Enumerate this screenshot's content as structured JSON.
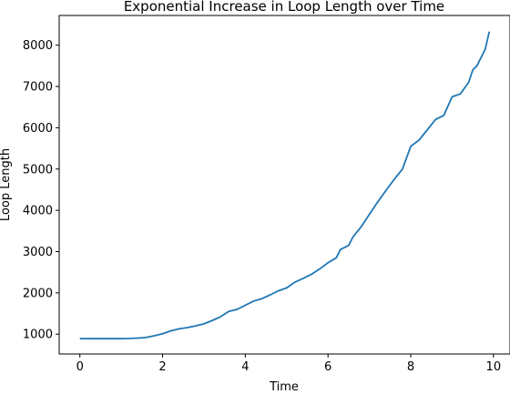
{
  "chart_data": {
    "type": "line",
    "title": "Exponential Increase in Loop Length over Time",
    "xlabel": "Time",
    "ylabel": "Loop Length",
    "xlim": [
      -0.5,
      10.4
    ],
    "ylim": [
      520,
      8720
    ],
    "x_ticks": [
      0,
      2,
      4,
      6,
      8,
      10
    ],
    "x_tick_labels": [
      "0",
      "2",
      "4",
      "6",
      "8",
      "10"
    ],
    "y_ticks": [
      1000,
      2000,
      3000,
      4000,
      5000,
      6000,
      7000,
      8000
    ],
    "y_tick_labels": [
      "1000",
      "2000",
      "3000",
      "4000",
      "5000",
      "6000",
      "7000",
      "8000"
    ],
    "grid": false,
    "series": [
      {
        "color": "#1f77b4",
        "x": [
          0.0,
          0.2,
          0.4,
          0.6,
          0.8,
          1.0,
          1.2,
          1.4,
          1.5,
          1.6,
          1.8,
          2.0,
          2.2,
          2.4,
          2.6,
          2.8,
          3.0,
          3.2,
          3.4,
          3.6,
          3.8,
          4.0,
          4.2,
          4.4,
          4.6,
          4.8,
          5.0,
          5.2,
          5.4,
          5.6,
          5.8,
          6.0,
          6.2,
          6.3,
          6.5,
          6.6,
          6.8,
          7.0,
          7.2,
          7.4,
          7.6,
          7.8,
          8.0,
          8.2,
          8.4,
          8.6,
          8.8,
          9.0,
          9.2,
          9.4,
          9.5,
          9.6,
          9.8,
          9.9
        ],
        "values": [
          890,
          890,
          890,
          890,
          890,
          890,
          895,
          905,
          910,
          920,
          960,
          1010,
          1080,
          1130,
          1160,
          1200,
          1250,
          1330,
          1420,
          1550,
          1600,
          1700,
          1800,
          1860,
          1950,
          2050,
          2120,
          2260,
          2350,
          2450,
          2580,
          2730,
          2850,
          3050,
          3150,
          3350,
          3600,
          3900,
          4200,
          4480,
          4750,
          5000,
          5550,
          5700,
          5950,
          6200,
          6300,
          6750,
          6820,
          7100,
          7400,
          7500,
          7900,
          8330
        ]
      }
    ]
  }
}
